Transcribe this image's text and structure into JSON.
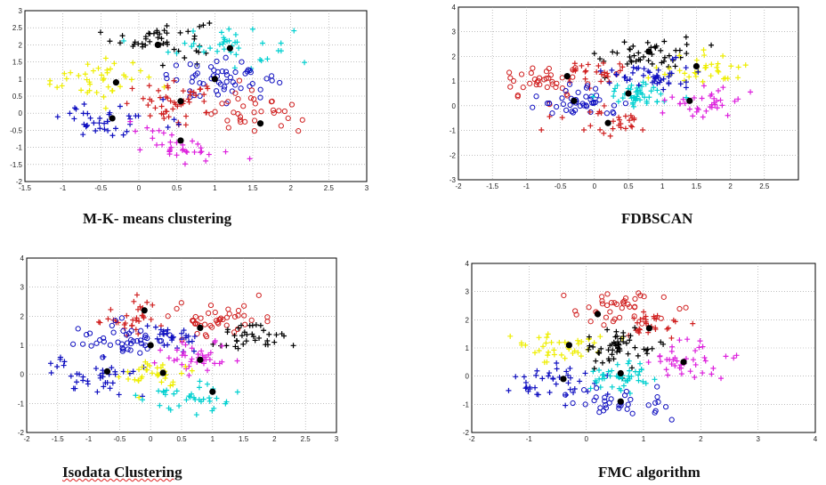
{
  "chart_data": [
    {
      "type": "scatter",
      "title": "M-K- means  clustering",
      "xlim": [
        -1.5,
        3
      ],
      "ylim": [
        -2,
        3
      ],
      "xticks": [
        "-1.5",
        "-1",
        "-0.5",
        "0",
        "0.5",
        "1",
        "1.5",
        "2",
        "2.5",
        "3"
      ],
      "yticks": [
        "-2",
        "-1.5",
        "-1",
        "-0.5",
        "0",
        "0.5",
        "1",
        "1.5",
        "2",
        "2.5",
        "3"
      ],
      "grid": true,
      "clusters": [
        {
          "color": "#000000",
          "marker": "plus",
          "center": [
            0.3,
            2.2
          ],
          "spread": [
            0.4,
            0.35
          ],
          "count": 45
        },
        {
          "color": "#00d0d0",
          "marker": "plus",
          "center": [
            1.2,
            2.0
          ],
          "spread": [
            0.5,
            0.4
          ],
          "count": 40
        },
        {
          "color": "#eeee00",
          "marker": "plus",
          "center": [
            -0.6,
            1.0
          ],
          "spread": [
            0.45,
            0.35
          ],
          "count": 40
        },
        {
          "color": "#1010c0",
          "marker": "circle",
          "center": [
            1.1,
            1.0
          ],
          "spread": [
            0.45,
            0.35
          ],
          "count": 55
        },
        {
          "color": "#d02020",
          "marker": "plus",
          "center": [
            0.5,
            0.3
          ],
          "spread": [
            0.4,
            0.35
          ],
          "count": 50
        },
        {
          "color": "#d02020",
          "marker": "circle",
          "center": [
            1.5,
            0.0
          ],
          "spread": [
            0.4,
            0.4
          ],
          "count": 35
        },
        {
          "color": "#1010c0",
          "marker": "plus",
          "center": [
            -0.3,
            -0.2
          ],
          "spread": [
            0.45,
            0.35
          ],
          "count": 40
        },
        {
          "color": "#dd22dd",
          "marker": "plus",
          "center": [
            0.5,
            -0.9
          ],
          "spread": [
            0.4,
            0.3
          ],
          "count": 35
        }
      ],
      "centroids": [
        [
          -0.3,
          0.9
        ],
        [
          1.2,
          1.9
        ],
        [
          0.55,
          0.35
        ],
        [
          1.0,
          1.0
        ],
        [
          -0.35,
          -0.15
        ],
        [
          0.55,
          -0.8
        ],
        [
          1.6,
          -0.3
        ],
        [
          0.25,
          2.0
        ]
      ]
    },
    {
      "type": "scatter",
      "title": "FDBSCAN",
      "xlim": [
        -2,
        3
      ],
      "ylim": [
        -3,
        4
      ],
      "xticks": [
        "-2",
        "-1.5",
        "-1",
        "-0.5",
        "0",
        "0.5",
        "1",
        "1.5",
        "2",
        "2.5"
      ],
      "yticks": [
        "-3",
        "-2",
        "-1",
        "0",
        "1",
        "2",
        "3",
        "4"
      ],
      "grid": true,
      "clusters": [
        {
          "color": "#000000",
          "marker": "plus",
          "center": [
            0.8,
            2.1
          ],
          "spread": [
            0.45,
            0.4
          ],
          "count": 45
        },
        {
          "color": "#eeee00",
          "marker": "plus",
          "center": [
            1.6,
            1.5
          ],
          "spread": [
            0.4,
            0.45
          ],
          "count": 35
        },
        {
          "color": "#d02020",
          "marker": "circle",
          "center": [
            -0.8,
            1.0
          ],
          "spread": [
            0.5,
            0.45
          ],
          "count": 40
        },
        {
          "color": "#d02020",
          "marker": "plus",
          "center": [
            0.0,
            1.3
          ],
          "spread": [
            0.3,
            0.35
          ],
          "count": 25
        },
        {
          "color": "#1010c0",
          "marker": "plus",
          "center": [
            0.8,
            1.2
          ],
          "spread": [
            0.4,
            0.35
          ],
          "count": 45
        },
        {
          "color": "#1010c0",
          "marker": "circle",
          "center": [
            -0.2,
            0.2
          ],
          "spread": [
            0.4,
            0.4
          ],
          "count": 45
        },
        {
          "color": "#00d0d0",
          "marker": "plus",
          "center": [
            0.6,
            0.4
          ],
          "spread": [
            0.35,
            0.35
          ],
          "count": 45
        },
        {
          "color": "#dd22dd",
          "marker": "plus",
          "center": [
            1.6,
            0.2
          ],
          "spread": [
            0.35,
            0.45
          ],
          "count": 35
        },
        {
          "color": "#d02020",
          "marker": "plus",
          "center": [
            0.2,
            -0.7
          ],
          "spread": [
            0.4,
            0.35
          ],
          "count": 30
        }
      ],
      "centroids": [
        [
          -0.4,
          1.2
        ],
        [
          0.8,
          2.2
        ],
        [
          1.5,
          1.6
        ],
        [
          0.5,
          0.5
        ],
        [
          1.4,
          0.2
        ],
        [
          -0.3,
          0.2
        ],
        [
          0.2,
          -0.7
        ]
      ]
    },
    {
      "type": "scatter",
      "title": "Isodata Clustering",
      "xlim": [
        -2,
        3
      ],
      "ylim": [
        -2,
        4
      ],
      "xticks": [
        "-2",
        "-1.5",
        "-1",
        "-0.5",
        "0",
        "0.5",
        "1",
        "1.5",
        "2",
        "2.5",
        "3"
      ],
      "yticks": [
        "-2",
        "-1",
        "0",
        "1",
        "2",
        "3",
        "4"
      ],
      "grid": true,
      "clusters": [
        {
          "color": "#d02020",
          "marker": "plus",
          "center": [
            -0.2,
            2.0
          ],
          "spread": [
            0.4,
            0.45
          ],
          "count": 35
        },
        {
          "color": "#d02020",
          "marker": "circle",
          "center": [
            1.0,
            1.9
          ],
          "spread": [
            0.5,
            0.4
          ],
          "count": 45
        },
        {
          "color": "#000000",
          "marker": "plus",
          "center": [
            1.6,
            1.2
          ],
          "spread": [
            0.4,
            0.35
          ],
          "count": 35
        },
        {
          "color": "#1010c0",
          "marker": "circle",
          "center": [
            -0.4,
            1.2
          ],
          "spread": [
            0.45,
            0.35
          ],
          "count": 45
        },
        {
          "color": "#1010c0",
          "marker": "plus",
          "center": [
            -0.9,
            -0.1
          ],
          "spread": [
            0.5,
            0.45
          ],
          "count": 40
        },
        {
          "color": "#1010c0",
          "marker": "plus",
          "center": [
            0.3,
            1.2
          ],
          "spread": [
            0.3,
            0.3
          ],
          "count": 30
        },
        {
          "color": "#dd22dd",
          "marker": "plus",
          "center": [
            0.8,
            0.6
          ],
          "spread": [
            0.35,
            0.35
          ],
          "count": 40
        },
        {
          "color": "#eeee00",
          "marker": "plus",
          "center": [
            0.1,
            0.0
          ],
          "spread": [
            0.35,
            0.3
          ],
          "count": 35
        },
        {
          "color": "#00d0d0",
          "marker": "plus",
          "center": [
            0.6,
            -0.8
          ],
          "spread": [
            0.45,
            0.35
          ],
          "count": 35
        }
      ],
      "centroids": [
        [
          -0.7,
          0.1
        ],
        [
          -0.1,
          2.2
        ],
        [
          0.8,
          1.6
        ],
        [
          0.0,
          1.0
        ],
        [
          0.2,
          0.05
        ],
        [
          0.8,
          0.5
        ],
        [
          1.0,
          -0.6
        ]
      ]
    },
    {
      "type": "scatter",
      "title": "FMC algorithm",
      "xlim": [
        -2,
        4
      ],
      "ylim": [
        -2,
        4
      ],
      "xticks": [
        "-2",
        "-1",
        "0",
        "1",
        "2",
        "3",
        "4"
      ],
      "yticks": [
        "-2",
        "-1",
        "0",
        "1",
        "2",
        "3",
        "4"
      ],
      "grid": true,
      "clusters": [
        {
          "color": "#d02020",
          "marker": "circle",
          "center": [
            0.4,
            2.4
          ],
          "spread": [
            0.6,
            0.4
          ],
          "count": 40
        },
        {
          "color": "#d02020",
          "marker": "plus",
          "center": [
            1.1,
            1.7
          ],
          "spread": [
            0.4,
            0.35
          ],
          "count": 30
        },
        {
          "color": "#eeee00",
          "marker": "plus",
          "center": [
            -0.4,
            1.1
          ],
          "spread": [
            0.5,
            0.4
          ],
          "count": 40
        },
        {
          "color": "#000000",
          "marker": "plus",
          "center": [
            0.6,
            1.0
          ],
          "spread": [
            0.35,
            0.4
          ],
          "count": 55
        },
        {
          "color": "#dd22dd",
          "marker": "plus",
          "center": [
            1.8,
            0.5
          ],
          "spread": [
            0.45,
            0.4
          ],
          "count": 40
        },
        {
          "color": "#1010c0",
          "marker": "plus",
          "center": [
            -0.6,
            -0.2
          ],
          "spread": [
            0.5,
            0.45
          ],
          "count": 40
        },
        {
          "color": "#00d0d0",
          "marker": "plus",
          "center": [
            0.6,
            0.0
          ],
          "spread": [
            0.35,
            0.35
          ],
          "count": 45
        },
        {
          "color": "#1010c0",
          "marker": "circle",
          "center": [
            0.6,
            -1.0
          ],
          "spread": [
            0.6,
            0.35
          ],
          "count": 35
        }
      ],
      "centroids": [
        [
          0.2,
          2.2
        ],
        [
          1.1,
          1.7
        ],
        [
          -0.3,
          1.1
        ],
        [
          0.6,
          0.1
        ],
        [
          1.7,
          0.5
        ],
        [
          -0.4,
          -0.1
        ],
        [
          0.6,
          -0.9
        ]
      ]
    }
  ]
}
